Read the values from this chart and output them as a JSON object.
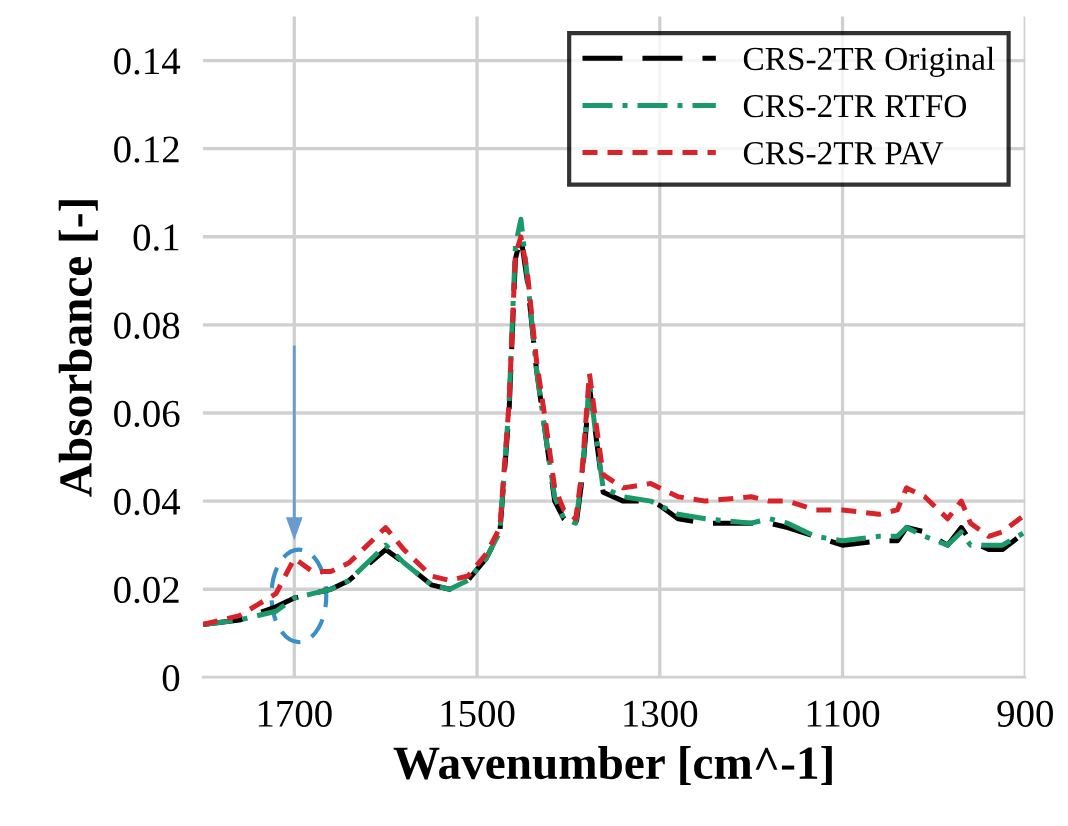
{
  "chart_data": {
    "type": "line",
    "xlabel": "Wavenumber [cm^-1]",
    "ylabel": "Absorbance [-]",
    "xlim": [
      1800,
      900
    ],
    "xticks": [
      1700,
      1500,
      1300,
      1100,
      900
    ],
    "ylim": [
      0,
      0.15
    ],
    "yticks": [
      0,
      0.02,
      0.04,
      0.06,
      0.08,
      0.1,
      0.12,
      0.14
    ],
    "grid": true,
    "legend": "top right",
    "marker": "none",
    "x": [
      1800,
      1760,
      1720,
      1700,
      1680,
      1660,
      1640,
      1600,
      1580,
      1550,
      1530,
      1510,
      1490,
      1475,
      1465,
      1458,
      1452,
      1445,
      1435,
      1425,
      1415,
      1405,
      1392,
      1385,
      1377,
      1370,
      1362,
      1340,
      1310,
      1300,
      1280,
      1250,
      1200,
      1180,
      1160,
      1130,
      1100,
      1060,
      1040,
      1030,
      1010,
      985,
      970,
      960,
      940,
      925,
      900
    ],
    "series": [
      {
        "name": "CRS-2TR Original",
        "color": "#000000",
        "line_style": "dashed",
        "values": [
          0.012,
          0.013,
          0.016,
          0.018,
          0.019,
          0.02,
          0.022,
          0.029,
          0.026,
          0.021,
          0.02,
          0.022,
          0.027,
          0.033,
          0.06,
          0.095,
          0.1,
          0.09,
          0.07,
          0.055,
          0.04,
          0.036,
          0.034,
          0.045,
          0.066,
          0.055,
          0.042,
          0.04,
          0.04,
          0.039,
          0.036,
          0.035,
          0.035,
          0.035,
          0.034,
          0.032,
          0.03,
          0.031,
          0.031,
          0.034,
          0.033,
          0.03,
          0.034,
          0.031,
          0.029,
          0.029,
          0.033
        ]
      },
      {
        "name": "CRS-2TR RTFO",
        "color": "#1a9a6a",
        "line_style": "dashdot",
        "values": [
          0.012,
          0.013,
          0.015,
          0.018,
          0.019,
          0.02,
          0.022,
          0.03,
          0.026,
          0.021,
          0.02,
          0.022,
          0.027,
          0.033,
          0.062,
          0.098,
          0.104,
          0.091,
          0.07,
          0.055,
          0.041,
          0.036,
          0.035,
          0.046,
          0.067,
          0.055,
          0.043,
          0.041,
          0.04,
          0.039,
          0.037,
          0.036,
          0.035,
          0.036,
          0.035,
          0.032,
          0.031,
          0.032,
          0.032,
          0.034,
          0.032,
          0.03,
          0.033,
          0.03,
          0.03,
          0.03,
          0.033
        ]
      },
      {
        "name": "CRS-2TR PAV",
        "color": "#d9232a",
        "line_style": "dotted",
        "values": [
          0.012,
          0.014,
          0.019,
          0.027,
          0.024,
          0.024,
          0.026,
          0.034,
          0.029,
          0.023,
          0.022,
          0.023,
          0.028,
          0.034,
          0.062,
          0.096,
          0.1,
          0.092,
          0.072,
          0.058,
          0.043,
          0.038,
          0.036,
          0.047,
          0.069,
          0.058,
          0.046,
          0.043,
          0.044,
          0.043,
          0.041,
          0.04,
          0.041,
          0.04,
          0.04,
          0.038,
          0.038,
          0.037,
          0.038,
          0.043,
          0.041,
          0.036,
          0.04,
          0.035,
          0.032,
          0.033,
          0.037
        ]
      }
    ]
  }
}
